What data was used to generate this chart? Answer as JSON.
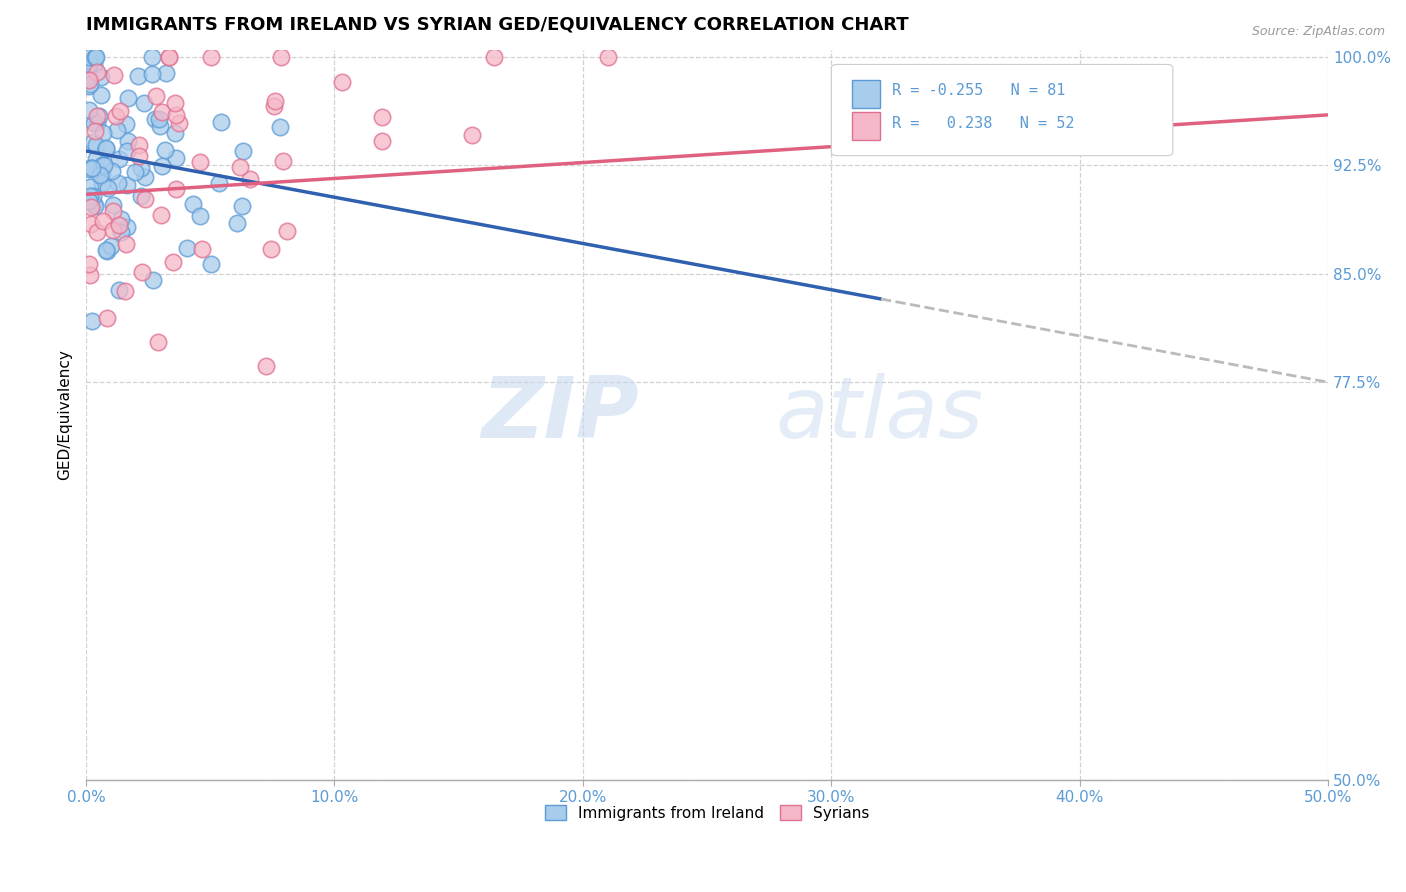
{
  "title": "IMMIGRANTS FROM IRELAND VS SYRIAN GED/EQUIVALENCY CORRELATION CHART",
  "source": "Source: ZipAtlas.com",
  "legend_label1": "Immigrants from Ireland",
  "legend_label2": "Syrians",
  "R1": -0.255,
  "N1": 81,
  "R2": 0.238,
  "N2": 52,
  "watermark_zip": "ZIP",
  "watermark_atlas": "atlas",
  "xmin": 0.0,
  "xmax": 0.5,
  "ymin": 0.5,
  "ymax": 1.005,
  "yticks": [
    0.5,
    0.775,
    0.85,
    0.925,
    1.0
  ],
  "xticks": [
    0.0,
    0.1,
    0.2,
    0.3,
    0.4,
    0.5
  ],
  "color_ireland_face": "#A8CCEC",
  "color_ireland_edge": "#5B9BD5",
  "color_syria_face": "#F5B8C8",
  "color_syria_edge": "#E07090",
  "color_trendline_ireland": "#3060B0",
  "color_trendline_syria": "#E06080",
  "color_trendline_ext": "#BBBBBB",
  "color_tick_label": "#5B9BD5",
  "trendline_ire_x0": 0.0,
  "trendline_ire_y0": 0.935,
  "trendline_ire_x1": 0.5,
  "trendline_ire_y1": 0.775,
  "trendline_syr_x0": 0.0,
  "trendline_syr_y0": 0.905,
  "trendline_syr_x1": 0.5,
  "trendline_syr_y1": 0.96,
  "trendline_ire_solid_end": 0.32,
  "seed_ireland": 42,
  "seed_syria": 99
}
